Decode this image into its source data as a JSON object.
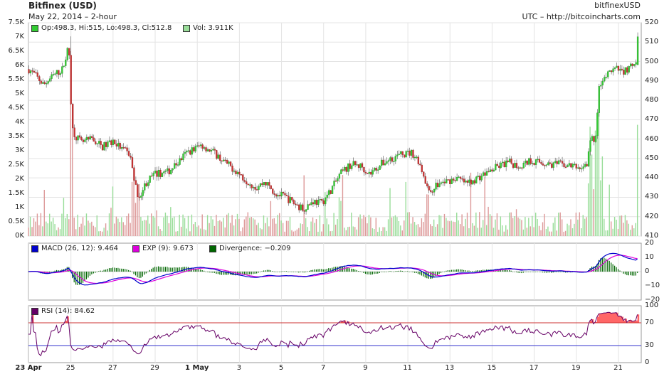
{
  "header": {
    "title": "Bitfinex (USD)",
    "subtitle": "May 22, 2014 – 2-hour",
    "symbol": "bitfinexUSD",
    "source": "UTC – http://bitcoincharts.com"
  },
  "legend": {
    "ohlc": "Op:498.3, Hi:515, Lo:498.3, Cl:512.8",
    "vol": "Vol: 3.911K",
    "macd": "MACD (26, 12): 9.464",
    "exp": "EXP (9): 9.673",
    "div": "Divergence: −0.209",
    "rsi": "RSI (14): 84.62"
  },
  "colors": {
    "up": "#33cc33",
    "down": "#cc3333",
    "vol_up": "#99dd99",
    "vol_down": "#dd9999",
    "macd": "#0000cc",
    "exp": "#dd00dd",
    "div": "#006600",
    "rsi": "#660066",
    "rsi_fill": "#ff6666",
    "line70": "#cc3333",
    "line30": "#3333cc",
    "grid": "#e4e4e4"
  },
  "chart_data": [
    {
      "type": "candlestick",
      "title": "Bitfinex (USD)",
      "price_axis": {
        "ylim": [
          410,
          520
        ],
        "ticks": [
          "410",
          "420",
          "430",
          "440",
          "450",
          "460",
          "470",
          "480",
          "490",
          "500",
          "510",
          "520"
        ]
      },
      "volume_axis": {
        "ylim": [
          0,
          7500
        ],
        "ticks": [
          "0K",
          "0.5K",
          "1K",
          "1.5K",
          "2K",
          "2.5K",
          "3K",
          "3.5K",
          "4K",
          "4.5K",
          "5K",
          "5.5K",
          "6K",
          "6.5K",
          "7K",
          "7.5K"
        ]
      },
      "x_labels": [
        {
          "label": "23 Apr",
          "day": 0,
          "bold": true
        },
        {
          "label": "25",
          "day": 2
        },
        {
          "label": "27",
          "day": 4
        },
        {
          "label": "29",
          "day": 6
        },
        {
          "label": "1 May",
          "day": 8,
          "bold": true
        },
        {
          "label": "3",
          "day": 10
        },
        {
          "label": "5",
          "day": 12
        },
        {
          "label": "7",
          "day": 14
        },
        {
          "label": "9",
          "day": 16
        },
        {
          "label": "11",
          "day": 18
        },
        {
          "label": "13",
          "day": 20
        },
        {
          "label": "15",
          "day": 22
        },
        {
          "label": "17",
          "day": 24
        },
        {
          "label": "19",
          "day": 26
        },
        {
          "label": "21",
          "day": 28
        }
      ],
      "close_anchors": [
        [
          0,
          496
        ],
        [
          0.3,
          493
        ],
        [
          0.7,
          488
        ],
        [
          1.2,
          493
        ],
        [
          1.6,
          496
        ],
        [
          1.9,
          508
        ],
        [
          2.05,
          466
        ],
        [
          2.2,
          462
        ],
        [
          2.5,
          458
        ],
        [
          3.0,
          460
        ],
        [
          3.5,
          456
        ],
        [
          4.0,
          459
        ],
        [
          4.4,
          455
        ],
        [
          4.8,
          452
        ],
        [
          5.0,
          440
        ],
        [
          5.2,
          430
        ],
        [
          5.6,
          438
        ],
        [
          6.0,
          442
        ],
        [
          6.6,
          443
        ],
        [
          7.0,
          447
        ],
        [
          7.5,
          453
        ],
        [
          8.2,
          457
        ],
        [
          8.8,
          453
        ],
        [
          9.3,
          448
        ],
        [
          9.8,
          444
        ],
        [
          10.3,
          439
        ],
        [
          10.8,
          435
        ],
        [
          11.2,
          438
        ],
        [
          11.7,
          432
        ],
        [
          12.2,
          430
        ],
        [
          12.6,
          427
        ],
        [
          13.0,
          424
        ],
        [
          13.5,
          428
        ],
        [
          13.9,
          427
        ],
        [
          14.3,
          433
        ],
        [
          14.8,
          442
        ],
        [
          15.3,
          447
        ],
        [
          15.8,
          446
        ],
        [
          16.2,
          442
        ],
        [
          16.7,
          447
        ],
        [
          17.2,
          450
        ],
        [
          17.7,
          452
        ],
        [
          18.2,
          453
        ],
        [
          18.5,
          449
        ],
        [
          18.8,
          440
        ],
        [
          19.0,
          432
        ],
        [
          19.3,
          436
        ],
        [
          19.8,
          438
        ],
        [
          20.3,
          440
        ],
        [
          20.8,
          437
        ],
        [
          21.3,
          440
        ],
        [
          21.8,
          443
        ],
        [
          22.3,
          446
        ],
        [
          22.8,
          448
        ],
        [
          23.3,
          446
        ],
        [
          23.8,
          449
        ],
        [
          24.3,
          448
        ],
        [
          24.8,
          447
        ],
        [
          25.3,
          447
        ],
        [
          25.8,
          446
        ],
        [
          26.2,
          445
        ],
        [
          26.5,
          447
        ],
        [
          26.7,
          460
        ],
        [
          26.9,
          459
        ],
        [
          27.1,
          488
        ],
        [
          27.4,
          492
        ],
        [
          27.8,
          496
        ],
        [
          28.2,
          495
        ],
        [
          28.6,
          497
        ],
        [
          28.85,
          498
        ],
        [
          28.95,
          513
        ]
      ],
      "last": {
        "open": 498.3,
        "high": 515,
        "low": 498.3,
        "close": 512.8,
        "volume": 3911
      }
    },
    {
      "type": "line",
      "title": "MACD (26, 12)",
      "ylim": [
        -20,
        20
      ],
      "ticks": [
        "20",
        "10",
        "0",
        "−10",
        "−20"
      ],
      "series": [
        {
          "name": "MACD (26, 12)",
          "last": 9.464
        },
        {
          "name": "EXP (9)",
          "last": 9.673
        },
        {
          "name": "Divergence",
          "last": -0.209
        }
      ]
    },
    {
      "type": "line",
      "title": "RSI (14)",
      "ylim": [
        0,
        100
      ],
      "ticks": [
        "0",
        "30",
        "70",
        "100"
      ],
      "reference_lines": [
        70,
        30
      ],
      "series": [
        {
          "name": "RSI (14)",
          "last": 84.62
        }
      ]
    }
  ]
}
